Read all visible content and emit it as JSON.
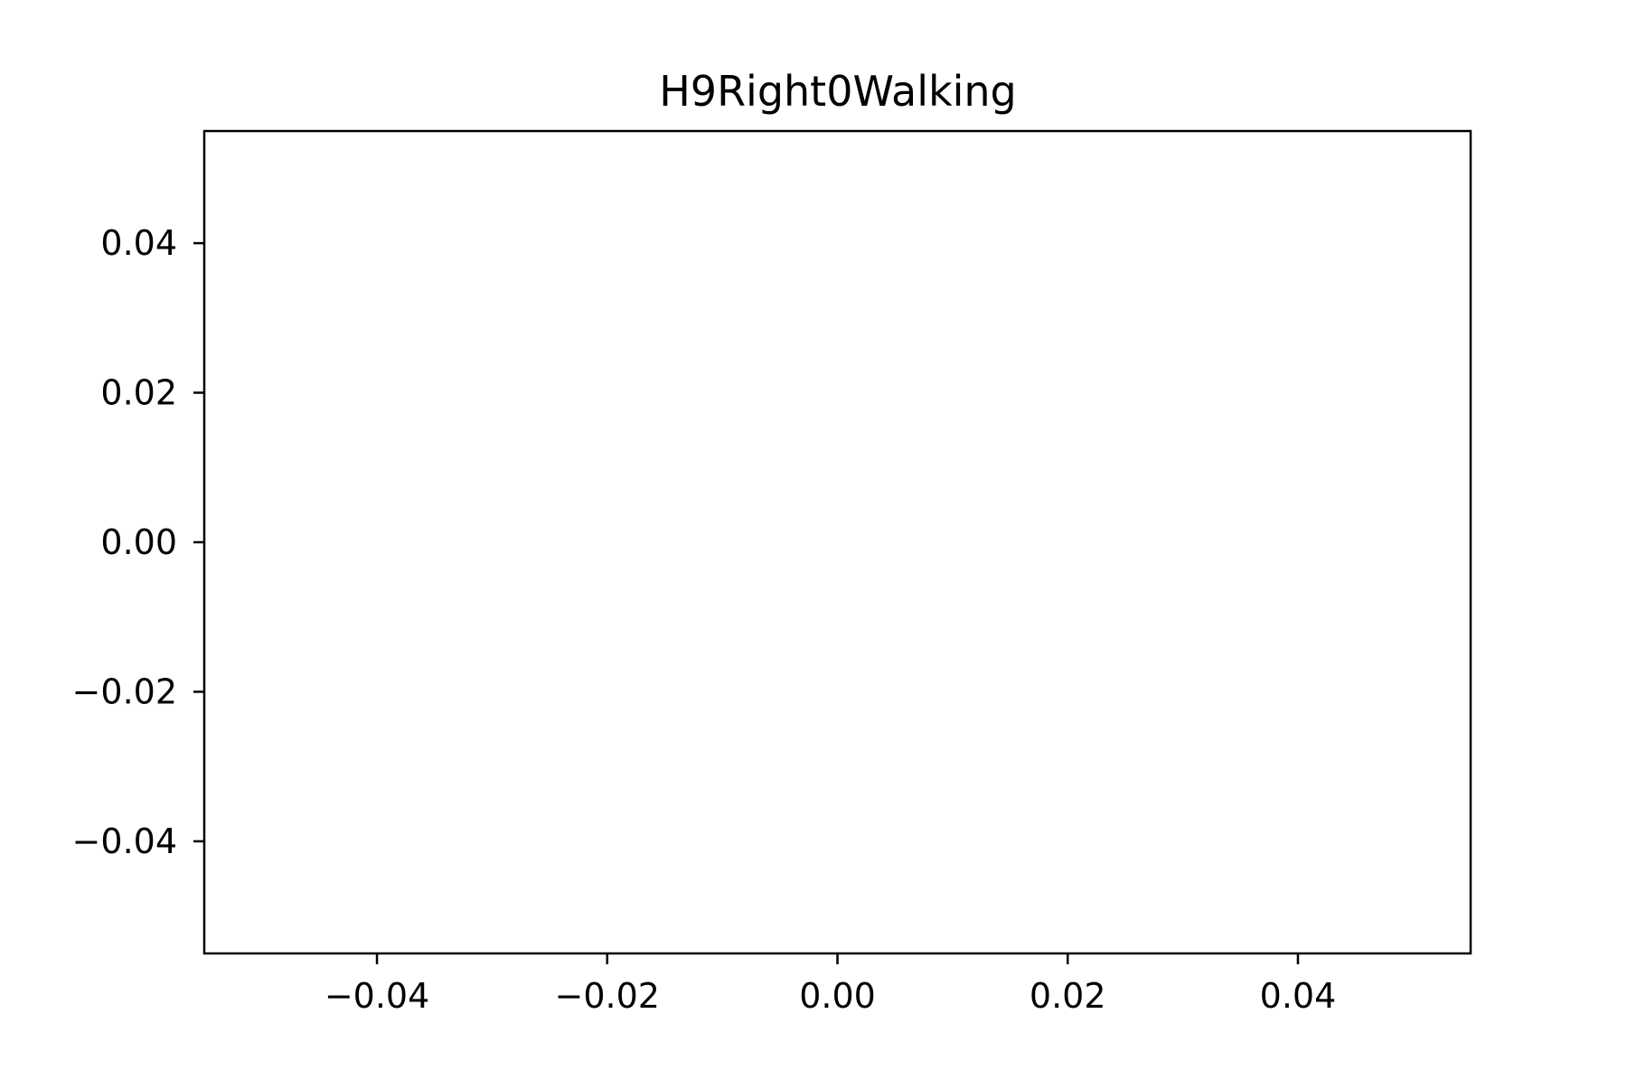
{
  "chart_data": {
    "type": "line",
    "title": "H9Right0Walking",
    "xlabel": "",
    "ylabel": "",
    "xlim": [
      -0.055,
      0.055
    ],
    "ylim": [
      -0.055,
      0.055
    ],
    "x_ticks": [
      -0.04,
      -0.02,
      0.0,
      0.02,
      0.04
    ],
    "x_tick_labels": [
      "−0.04",
      "−0.02",
      "0.00",
      "0.02",
      "0.04"
    ],
    "y_ticks": [
      0.04,
      0.02,
      0.0,
      -0.02,
      -0.04
    ],
    "y_tick_labels": [
      "0.04",
      "0.02",
      "0.00",
      "−0.02",
      "−0.04"
    ],
    "series": [],
    "grid": false,
    "legend": "none",
    "colors": {
      "axes": "#000000",
      "background": "#ffffff"
    }
  }
}
